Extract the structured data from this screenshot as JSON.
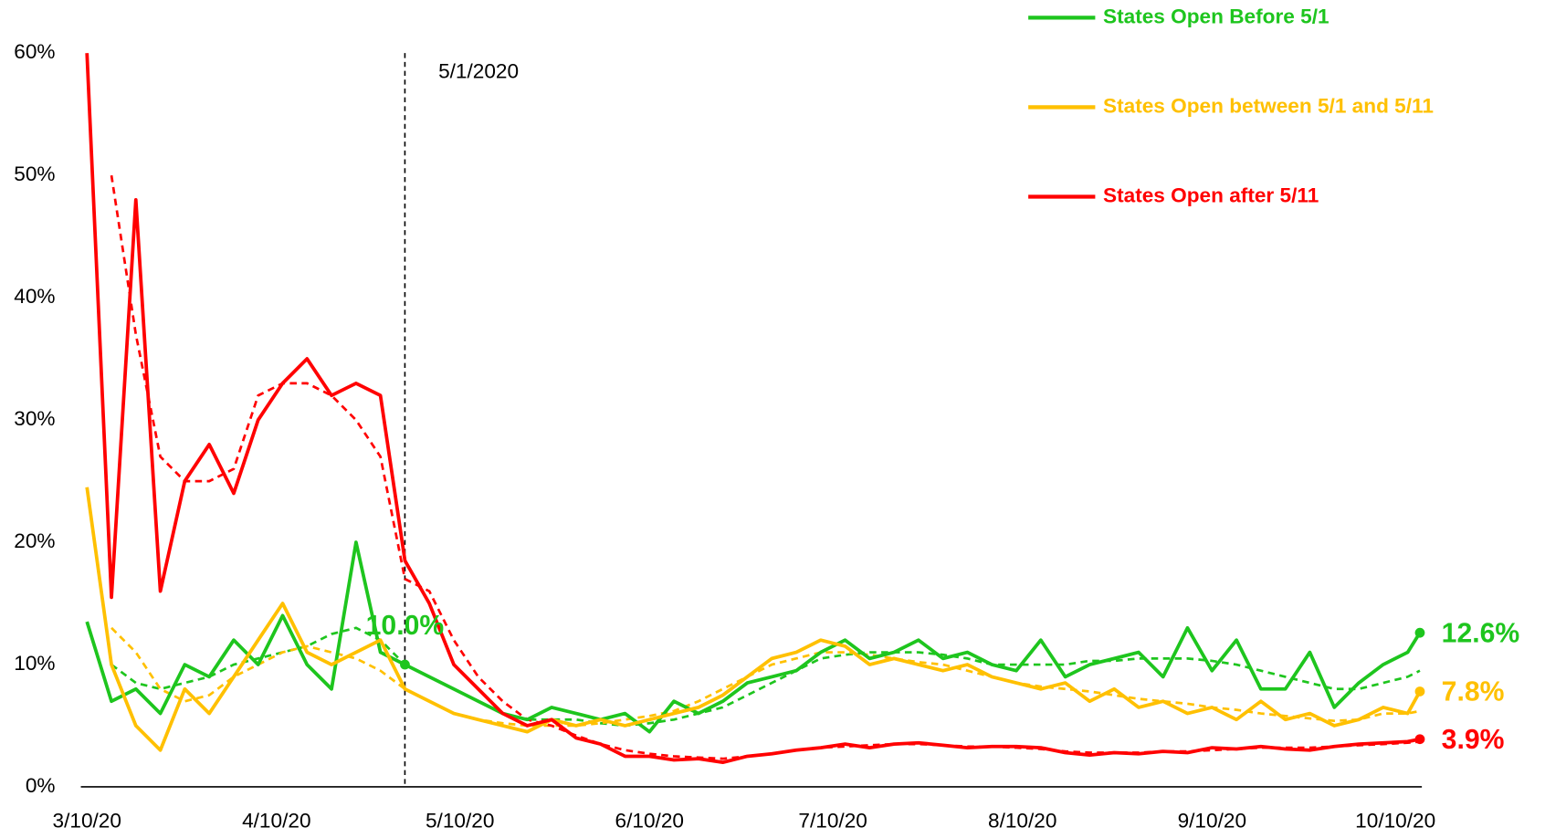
{
  "chart_data": {
    "type": "line",
    "x": [
      "3/10/20",
      "3/14/20",
      "3/18/20",
      "3/22/20",
      "3/26/20",
      "3/30/20",
      "4/3/20",
      "4/7/20",
      "4/11/20",
      "4/15/20",
      "4/19/20",
      "4/23/20",
      "4/27/20",
      "5/1/20",
      "5/5/20",
      "5/9/20",
      "5/13/20",
      "5/17/20",
      "5/21/20",
      "5/25/20",
      "5/29/20",
      "6/2/20",
      "6/6/20",
      "6/10/20",
      "6/14/20",
      "6/18/20",
      "6/22/20",
      "6/26/20",
      "6/30/20",
      "7/4/20",
      "7/8/20",
      "7/12/20",
      "7/16/20",
      "7/20/20",
      "7/24/20",
      "7/28/20",
      "8/1/20",
      "8/5/20",
      "8/9/20",
      "8/13/20",
      "8/17/20",
      "8/21/20",
      "8/25/20",
      "8/29/20",
      "9/2/20",
      "9/6/20",
      "9/10/20",
      "9/14/20",
      "9/18/20",
      "9/22/20",
      "9/26/20",
      "9/30/20",
      "10/4/20",
      "10/8/20",
      "10/12/20",
      "10/14/20"
    ],
    "series": [
      {
        "name": "States Open Before 5/1",
        "color": "#1ec51e",
        "values": [
          13.5,
          7,
          8,
          6,
          10,
          9,
          12,
          10,
          14,
          10,
          8,
          20,
          11,
          10.0,
          9,
          8,
          7,
          6,
          5.5,
          6.5,
          6,
          5.5,
          6,
          4.5,
          7,
          6,
          7,
          8.5,
          9,
          9.5,
          11,
          12,
          10.5,
          11,
          12,
          10.5,
          11,
          10,
          9.5,
          12,
          9,
          10,
          10.5,
          11,
          9,
          13,
          9.5,
          12,
          8,
          8,
          11,
          6.5,
          8.5,
          10,
          11,
          12.6
        ],
        "trend": [
          null,
          10,
          8.5,
          8,
          8.5,
          9,
          10,
          10.5,
          11,
          11.5,
          12.5,
          13,
          12,
          10,
          9,
          8,
          7,
          6,
          5.5,
          5.5,
          5.5,
          5.2,
          5,
          5.2,
          5.5,
          6,
          6.5,
          7.5,
          8.5,
          9.5,
          10.5,
          10.8,
          11,
          11,
          11,
          10.8,
          10.5,
          10,
          10,
          10,
          10,
          10.3,
          10.3,
          10.5,
          10.5,
          10.5,
          10.3,
          10,
          9.5,
          9,
          8.5,
          8,
          8,
          8.5,
          9,
          9.5
        ],
        "value_labels": [
          null,
          null,
          null,
          null,
          null,
          null,
          null,
          null,
          null,
          null,
          null,
          null,
          null,
          "10.0%",
          null,
          null,
          null,
          null,
          null,
          null,
          null,
          null,
          null,
          null,
          null,
          null,
          null,
          null,
          null,
          null,
          null,
          null,
          null,
          null,
          null,
          null,
          null,
          null,
          null,
          null,
          null,
          null,
          null,
          null,
          null,
          null,
          null,
          null,
          null,
          null,
          null,
          null,
          null,
          null,
          null,
          "12.6%"
        ]
      },
      {
        "name": "States Open between 5/1 and 5/11",
        "color": "#ffc000",
        "values": [
          24.5,
          10,
          5,
          3,
          8,
          6,
          9,
          12,
          15,
          11,
          10,
          11,
          12,
          8,
          7,
          6,
          5.5,
          5,
          4.5,
          5.5,
          5,
          5.5,
          5,
          5.5,
          6,
          6.5,
          7.5,
          9,
          10.5,
          11,
          12,
          11.5,
          10,
          10.5,
          10,
          9.5,
          10,
          9,
          8.5,
          8,
          8.5,
          7,
          8,
          6.5,
          7,
          6,
          6.5,
          5.5,
          7,
          5.5,
          6,
          5,
          5.5,
          6.5,
          6,
          7.8
        ],
        "trend": [
          null,
          13,
          11,
          8,
          7,
          7.5,
          9,
          10,
          11,
          11.5,
          11,
          10.5,
          9.5,
          8,
          7,
          6,
          5.5,
          5.2,
          5,
          5,
          5,
          5.2,
          5.5,
          5.8,
          6.2,
          7,
          8,
          9,
          10,
          10.5,
          11,
          11,
          10.8,
          10.5,
          10.2,
          10,
          9.5,
          9,
          8.5,
          8.2,
          8,
          7.8,
          7.5,
          7.2,
          7,
          6.8,
          6.5,
          6.3,
          6,
          5.8,
          5.6,
          5.4,
          5.5,
          6,
          6,
          6.2
        ],
        "value_labels": [
          null,
          null,
          null,
          null,
          null,
          null,
          null,
          null,
          null,
          null,
          null,
          null,
          null,
          null,
          null,
          null,
          null,
          null,
          null,
          null,
          null,
          null,
          null,
          null,
          null,
          null,
          null,
          null,
          null,
          null,
          null,
          null,
          null,
          null,
          null,
          null,
          null,
          null,
          null,
          null,
          null,
          null,
          null,
          null,
          null,
          null,
          null,
          null,
          null,
          null,
          null,
          null,
          null,
          null,
          null,
          "7.8%"
        ]
      },
      {
        "name": "States Open after 5/11",
        "color": "#ff0000",
        "values": [
          60,
          15.5,
          48,
          16,
          25,
          28,
          24,
          30,
          33,
          35,
          32,
          33,
          32,
          18.5,
          15,
          10,
          8,
          6,
          5,
          5.5,
          4,
          3.5,
          2.5,
          2.5,
          2.2,
          2.3,
          2,
          2.5,
          2.7,
          3,
          3.2,
          3.5,
          3.2,
          3.5,
          3.6,
          3.4,
          3.2,
          3.3,
          3.3,
          3.2,
          2.8,
          2.6,
          2.8,
          2.7,
          2.9,
          2.8,
          3.2,
          3.1,
          3.3,
          3.1,
          3.0,
          3.3,
          3.5,
          3.6,
          3.7,
          3.9
        ],
        "trend": [
          null,
          50,
          37,
          27,
          25,
          25,
          26,
          32,
          33,
          33,
          32,
          30,
          27,
          17,
          16,
          12,
          9,
          7,
          5.5,
          5,
          4.2,
          3.5,
          3,
          2.7,
          2.5,
          2.4,
          2.3,
          2.5,
          2.7,
          3,
          3.2,
          3.3,
          3.4,
          3.5,
          3.5,
          3.4,
          3.3,
          3.3,
          3.2,
          3.1,
          2.9,
          2.8,
          2.8,
          2.8,
          2.9,
          2.9,
          3.0,
          3.1,
          3.2,
          3.2,
          3.2,
          3.3,
          3.4,
          3.5,
          3.6,
          3.7
        ],
        "value_labels": [
          null,
          null,
          null,
          null,
          null,
          null,
          null,
          null,
          null,
          null,
          null,
          null,
          null,
          null,
          null,
          null,
          null,
          null,
          null,
          null,
          null,
          null,
          null,
          null,
          null,
          null,
          null,
          null,
          null,
          null,
          null,
          null,
          null,
          null,
          null,
          null,
          null,
          null,
          null,
          null,
          null,
          null,
          null,
          null,
          null,
          null,
          null,
          null,
          null,
          null,
          null,
          null,
          null,
          null,
          null,
          "3.9%"
        ]
      }
    ],
    "xlim": [
      "3/9/20",
      "10/14/20"
    ],
    "xticks": [
      "3/10/20",
      "4/10/20",
      "5/10/20",
      "6/10/20",
      "7/10/20",
      "8/10/20",
      "9/10/20",
      "10/10/20"
    ],
    "ylim": [
      0,
      60
    ],
    "yticks": [
      {
        "value": 0,
        "label": "0%"
      },
      {
        "value": 10,
        "label": "10%"
      },
      {
        "value": 20,
        "label": "20%"
      },
      {
        "value": 30,
        "label": "30%"
      },
      {
        "value": 40,
        "label": "40%"
      },
      {
        "value": 50,
        "label": "50%"
      },
      {
        "value": 60,
        "label": "60%"
      }
    ],
    "annotations": [
      {
        "x": "5/1/20",
        "label": "5/1/2020"
      }
    ],
    "legend": "top-right",
    "grid": false
  }
}
